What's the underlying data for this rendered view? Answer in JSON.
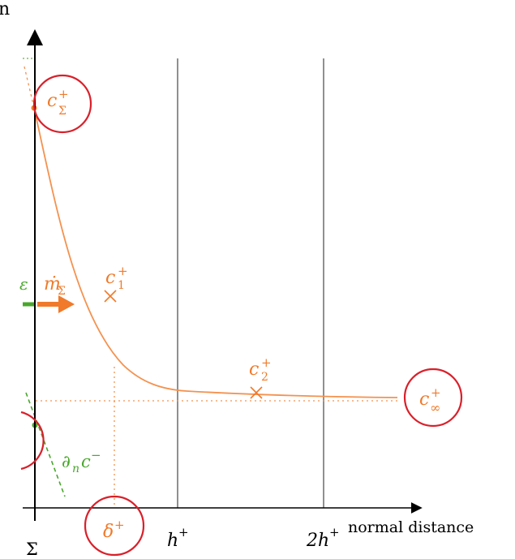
{
  "colors": {
    "axis": "#000000",
    "curve": "#f4924f",
    "arrow": "#f07a2a",
    "green": "#48a72b",
    "red": "#d9202a",
    "grid": "#222222"
  },
  "labels": {
    "y_axis_fragment": "n",
    "x_axis_label": "normal distance",
    "sigma": "Σ",
    "h_plus": {
      "base": "h",
      "sup": "+"
    },
    "two_h_plus": {
      "base": "2h",
      "sup": "+"
    },
    "delta_plus": {
      "base": "δ",
      "sup": "+"
    },
    "c_sigma_plus": {
      "base": "c",
      "sup": "+",
      "sub": "Σ"
    },
    "c1_plus": {
      "base": "c",
      "sup": "+",
      "sub": "1"
    },
    "c2_plus": {
      "base": "c",
      "sup": "+",
      "sub": "2"
    },
    "c_inf_plus": {
      "base": "c",
      "sup": "+",
      "sub": "∞"
    },
    "m_sigma": {
      "base": "ṁ",
      "sub": "Σ"
    },
    "dn_c_minus": {
      "prefix": "∂",
      "sub": "n",
      "base": "c",
      "sup": "−"
    },
    "green_fragment": "ε"
  }
}
